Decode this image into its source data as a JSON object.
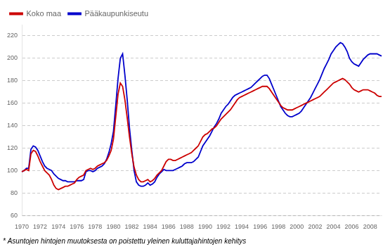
{
  "chart_data": {
    "type": "line",
    "annotations": [
      "* Asuntojen hintojen muutoksesta on poistettu yleinen kuluttajahintojen kehitys"
    ],
    "categories": [
      "1970",
      null,
      null,
      null,
      null,
      null,
      null,
      null,
      "1972",
      null,
      null,
      null,
      null,
      null,
      null,
      null,
      "1974",
      null,
      null,
      null,
      null,
      null,
      null,
      null,
      "1976",
      null,
      null,
      null,
      null,
      null,
      null,
      null,
      "1978",
      null,
      null,
      null,
      null,
      null,
      null,
      null,
      "1980",
      null,
      null,
      null,
      null,
      null,
      null,
      null,
      "1982",
      null,
      null,
      null,
      null,
      null,
      null,
      null,
      "1984",
      null,
      null,
      null,
      null,
      null,
      null,
      null,
      "1986",
      null,
      null,
      null,
      null,
      null,
      null,
      null,
      "1988",
      null,
      null,
      null,
      null,
      null,
      null,
      null,
      "1990",
      null,
      null,
      null,
      null,
      null,
      null,
      null,
      "1992",
      null,
      null,
      null,
      null,
      null,
      null,
      null,
      "1994",
      null,
      null,
      null,
      null,
      null,
      null,
      null,
      "1996",
      null,
      null,
      null,
      null,
      null,
      null,
      null,
      "1998",
      null,
      null,
      null,
      null,
      null,
      null,
      null,
      "2000",
      null,
      null,
      null,
      null,
      null,
      null,
      null,
      "2002",
      null,
      null,
      null,
      null,
      null,
      null,
      null,
      "2004",
      null,
      null,
      null,
      null,
      null,
      null,
      null,
      "2006",
      null,
      null,
      null,
      null,
      null,
      null,
      null,
      "2008",
      null,
      null,
      null,
      null,
      null
    ],
    "series": [
      {
        "name": "Koko maa",
        "color": "#cc0000",
        "values": [
          99,
          100,
          101,
          100,
          115,
          118,
          117,
          113,
          108,
          104,
          100,
          98,
          96,
          92,
          87,
          84,
          83,
          84,
          85,
          86,
          86,
          87,
          88,
          89,
          92,
          94,
          95,
          96,
          100,
          101,
          102,
          101,
          102,
          104,
          105,
          106,
          107,
          109,
          113,
          118,
          128,
          148,
          168,
          178,
          175,
          163,
          147,
          130,
          115,
          103,
          96,
          92,
          90,
          90,
          91,
          92,
          90,
          91,
          93,
          96,
          98,
          100,
          104,
          108,
          110,
          110,
          109,
          109,
          110,
          111,
          112,
          113,
          114,
          115,
          116,
          118,
          120,
          122,
          126,
          130,
          132,
          133,
          135,
          137,
          138,
          140,
          143,
          146,
          148,
          150,
          152,
          154,
          157,
          160,
          163,
          165,
          166,
          167,
          168,
          169,
          170,
          171,
          172,
          173,
          174,
          175,
          175,
          175,
          173,
          170,
          167,
          164,
          161,
          158,
          156,
          155,
          154,
          154,
          154,
          155,
          156,
          157,
          158,
          159,
          160,
          161,
          162,
          163,
          164,
          165,
          166,
          168,
          170,
          172,
          174,
          176,
          178,
          179,
          180,
          181,
          182,
          181,
          179,
          177,
          174,
          172,
          171,
          170,
          171,
          172,
          172,
          172,
          171,
          170,
          169,
          167,
          166,
          166
        ]
      },
      {
        "name": "Pääkaupunkiseutu",
        "color": "#0000cc",
        "values": [
          99,
          100,
          102,
          102,
          119,
          122,
          121,
          118,
          113,
          108,
          104,
          102,
          101,
          100,
          97,
          95,
          93,
          92,
          91,
          91,
          90,
          90,
          90,
          90,
          91,
          91,
          91,
          92,
          99,
          100,
          100,
          99,
          100,
          102,
          103,
          104,
          106,
          110,
          116,
          124,
          135,
          158,
          182,
          200,
          204,
          185,
          163,
          138,
          118,
          100,
          90,
          87,
          86,
          86,
          87,
          89,
          87,
          88,
          90,
          94,
          97,
          99,
          101,
          100,
          100,
          100,
          100,
          101,
          102,
          103,
          104,
          106,
          107,
          107,
          107,
          108,
          110,
          112,
          117,
          122,
          125,
          128,
          131,
          135,
          139,
          142,
          146,
          151,
          154,
          157,
          159,
          162,
          165,
          167,
          168,
          169,
          170,
          171,
          172,
          173,
          174,
          176,
          178,
          180,
          182,
          184,
          185,
          185,
          182,
          177,
          172,
          167,
          162,
          157,
          154,
          151,
          149,
          148,
          148,
          149,
          150,
          151,
          153,
          156,
          159,
          162,
          165,
          169,
          173,
          177,
          181,
          186,
          191,
          195,
          199,
          204,
          207,
          210,
          212,
          214,
          213,
          210,
          206,
          200,
          197,
          195,
          194,
          193,
          196,
          199,
          201,
          203,
          204,
          204,
          204,
          204,
          203,
          202
        ]
      }
    ],
    "ylim": [
      60,
      230
    ],
    "yticks": [
      60,
      80,
      100,
      120,
      140,
      160,
      180,
      200,
      220
    ],
    "grid": true,
    "legend": "upper left"
  }
}
